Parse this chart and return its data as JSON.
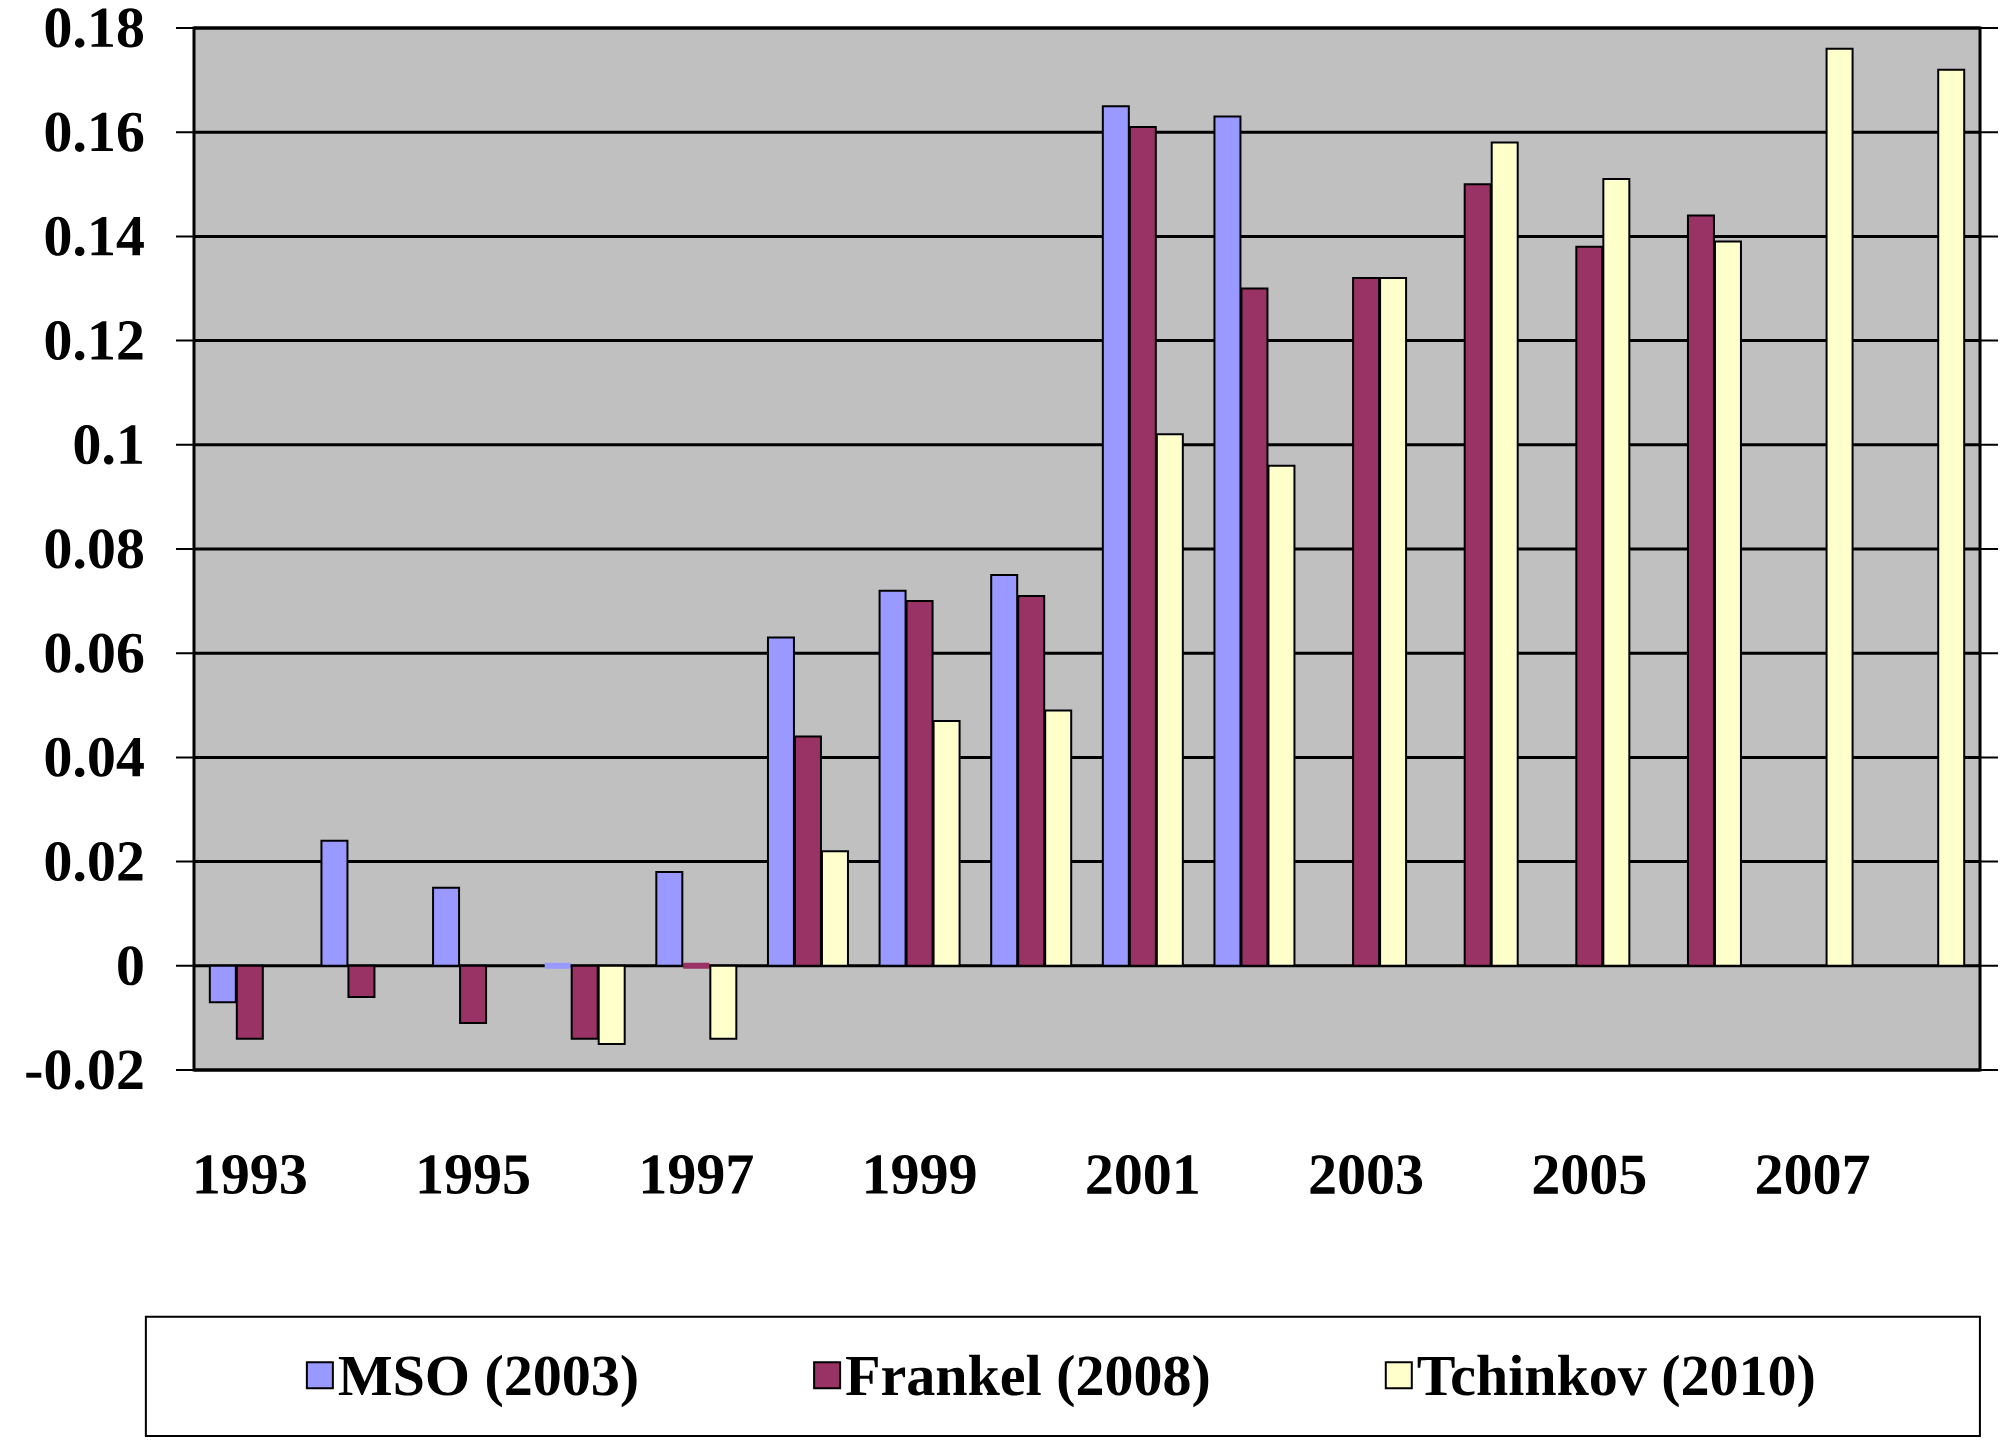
{
  "chart_data": {
    "type": "bar",
    "categories": [
      "1993",
      null,
      "1995",
      null,
      "1997",
      null,
      "1999",
      null,
      "2001",
      null,
      "2003",
      null,
      "2005",
      null,
      "2007",
      null
    ],
    "series": [
      {
        "name": "MSO (2003)",
        "color": "#9999ff",
        "values": [
          -0.007,
          0.024,
          0.015,
          0,
          0.018,
          0.063,
          0.072,
          0.075,
          0.165,
          0.163,
          null,
          null,
          null,
          null,
          null,
          null
        ]
      },
      {
        "name": "Frankel (2008)",
        "color": "#993366",
        "values": [
          -0.014,
          -0.006,
          -0.011,
          -0.014,
          0,
          0.044,
          0.07,
          0.071,
          0.161,
          0.13,
          0.132,
          0.15,
          0.138,
          0.144,
          null,
          null
        ]
      },
      {
        "name": "Tchinkov (2010)",
        "color": "#ffffcc",
        "values": [
          null,
          null,
          null,
          -0.015,
          -0.014,
          0.022,
          0.047,
          0.049,
          0.102,
          0.096,
          0.132,
          0.158,
          0.151,
          0.139,
          0.176,
          0.172
        ]
      }
    ],
    "ylim": [
      -0.02,
      0.18
    ],
    "yticks": [
      -0.02,
      0,
      0.02,
      0.04,
      0.06,
      0.08,
      0.1,
      0.12,
      0.14,
      0.16,
      0.18
    ],
    "grid": "y",
    "legend": "bottom"
  }
}
